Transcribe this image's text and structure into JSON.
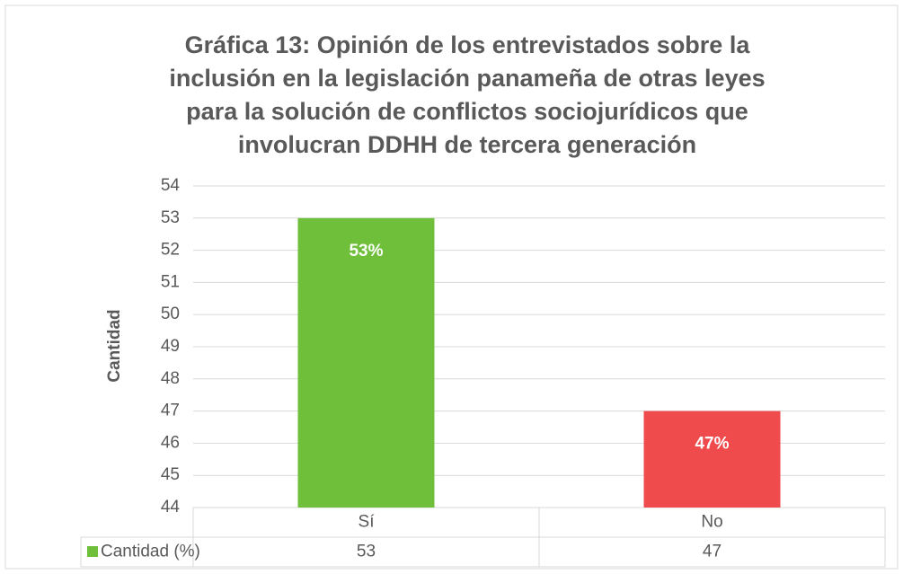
{
  "chart_data": {
    "type": "bar",
    "title": [
      "Gráfica 13: Opinión de los entrevistados sobre la",
      "inclusión en la legislación panameña de otras leyes",
      "para la solución de conflictos sociojurídicos que",
      "involucran DDHH de tercera generación"
    ],
    "y_label": "Cantidad",
    "categories": [
      "Sí",
      "No"
    ],
    "series": [
      {
        "name": "Cantidad (%)",
        "colors": [
          "#6fbf3b",
          "#ef4a4c"
        ],
        "values": [
          53,
          47
        ],
        "value_labels": [
          "53%",
          "47%"
        ]
      }
    ],
    "ylim": [
      44,
      54
    ],
    "yticks": [
      44,
      45,
      46,
      47,
      48,
      49,
      50,
      51,
      52,
      53,
      54
    ],
    "grid": true,
    "data_table": true
  }
}
